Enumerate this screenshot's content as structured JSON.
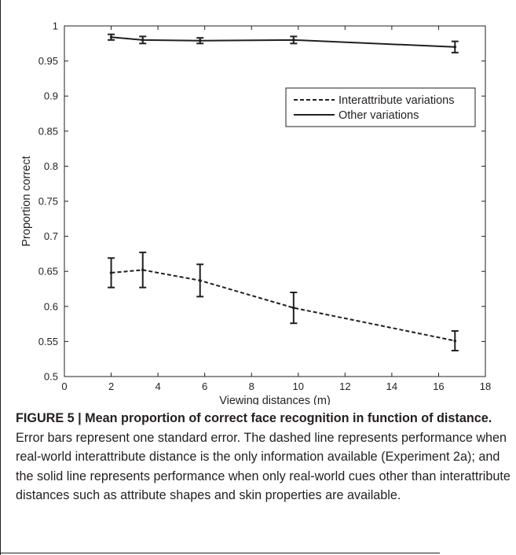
{
  "chart_data": {
    "type": "line",
    "xlabel": "Viewing distances (m)",
    "ylabel": "Proportion correct",
    "xlim": [
      0,
      18
    ],
    "ylim": [
      0.5,
      1
    ],
    "xticks": [
      0,
      2,
      4,
      6,
      8,
      10,
      12,
      14,
      16,
      18
    ],
    "yticks": [
      0.5,
      0.55,
      0.6,
      0.65,
      0.7,
      0.75,
      0.8,
      0.85,
      0.9,
      0.95,
      1
    ],
    "grid": false,
    "legend_position": "upper-right",
    "series": [
      {
        "name": "Interattribute variations",
        "style": "dashed",
        "x": [
          2,
          3.35,
          5.8,
          9.8,
          16.7
        ],
        "y": [
          0.648,
          0.652,
          0.637,
          0.598,
          0.551
        ],
        "error": [
          0.021,
          0.025,
          0.023,
          0.022,
          0.014
        ]
      },
      {
        "name": "Other variations",
        "style": "solid",
        "x": [
          2,
          3.35,
          5.8,
          9.8,
          16.7
        ],
        "y": [
          0.984,
          0.98,
          0.979,
          0.98,
          0.97
        ],
        "error": [
          0.004,
          0.005,
          0.004,
          0.005,
          0.008
        ]
      }
    ]
  },
  "caption": {
    "title": "FIGURE 5 | Mean proportion of correct face recognition in function of distance.",
    "text": " Error bars represent one standard error. The dashed line represents performance when real-world interattribute distance is the only information available (Experiment 2a); and the solid line represents performance when only real-world cues other than interattribute distances such as attribute shapes and skin properties are available."
  },
  "colors": {
    "ink": "#231f20"
  }
}
